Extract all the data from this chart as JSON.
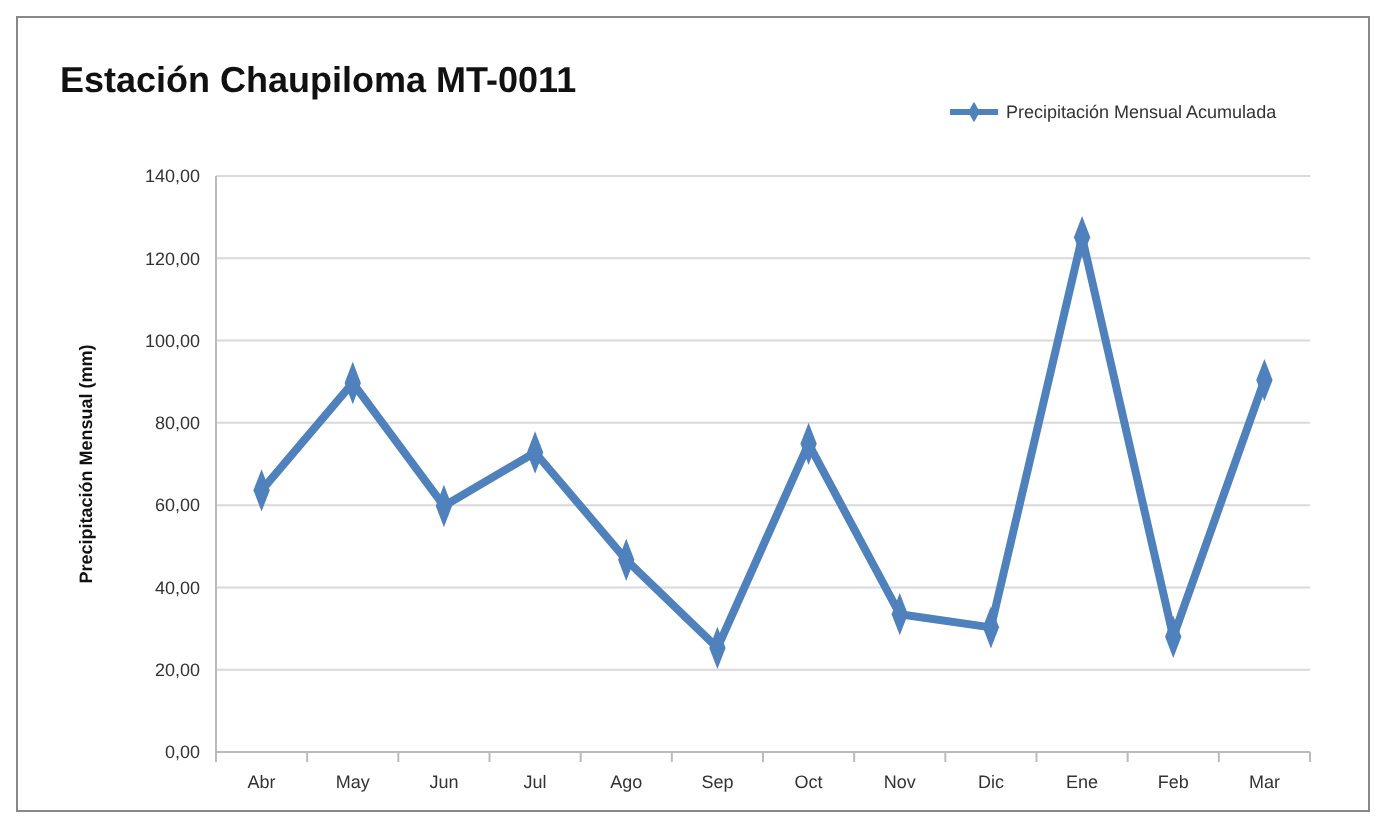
{
  "chart_data": {
    "type": "line",
    "title": "Estación Chaupiloma MT-0011",
    "ylabel": "Precipitación Mensual (mm)",
    "categories": [
      "Abr",
      "May",
      "Jun",
      "Jul",
      "Ago",
      "Sep",
      "Oct",
      "Nov",
      "Dic",
      "Ene",
      "Feb",
      "Mar"
    ],
    "series": [
      {
        "name": "Precipitación Mensual Acumulada",
        "color": "#4f81bd",
        "values": [
          63.6,
          89.7,
          59.8,
          72.8,
          46.7,
          25.3,
          74.9,
          33.5,
          30.3,
          125.1,
          28,
          90.4
        ]
      }
    ],
    "ylim": [
      0,
      140
    ],
    "yticks": [
      {
        "value": 0,
        "label": "0,00"
      },
      {
        "value": 20,
        "label": "20,00"
      },
      {
        "value": 40,
        "label": "40,00"
      },
      {
        "value": 60,
        "label": "60,00"
      },
      {
        "value": 80,
        "label": "80,00"
      },
      {
        "value": 100,
        "label": "100,00"
      },
      {
        "value": 120,
        "label": "120,00"
      },
      {
        "value": 140,
        "label": "140,00"
      }
    ],
    "grid": "y",
    "legend": "top right",
    "marker": "diamond",
    "line_style": "solid"
  }
}
